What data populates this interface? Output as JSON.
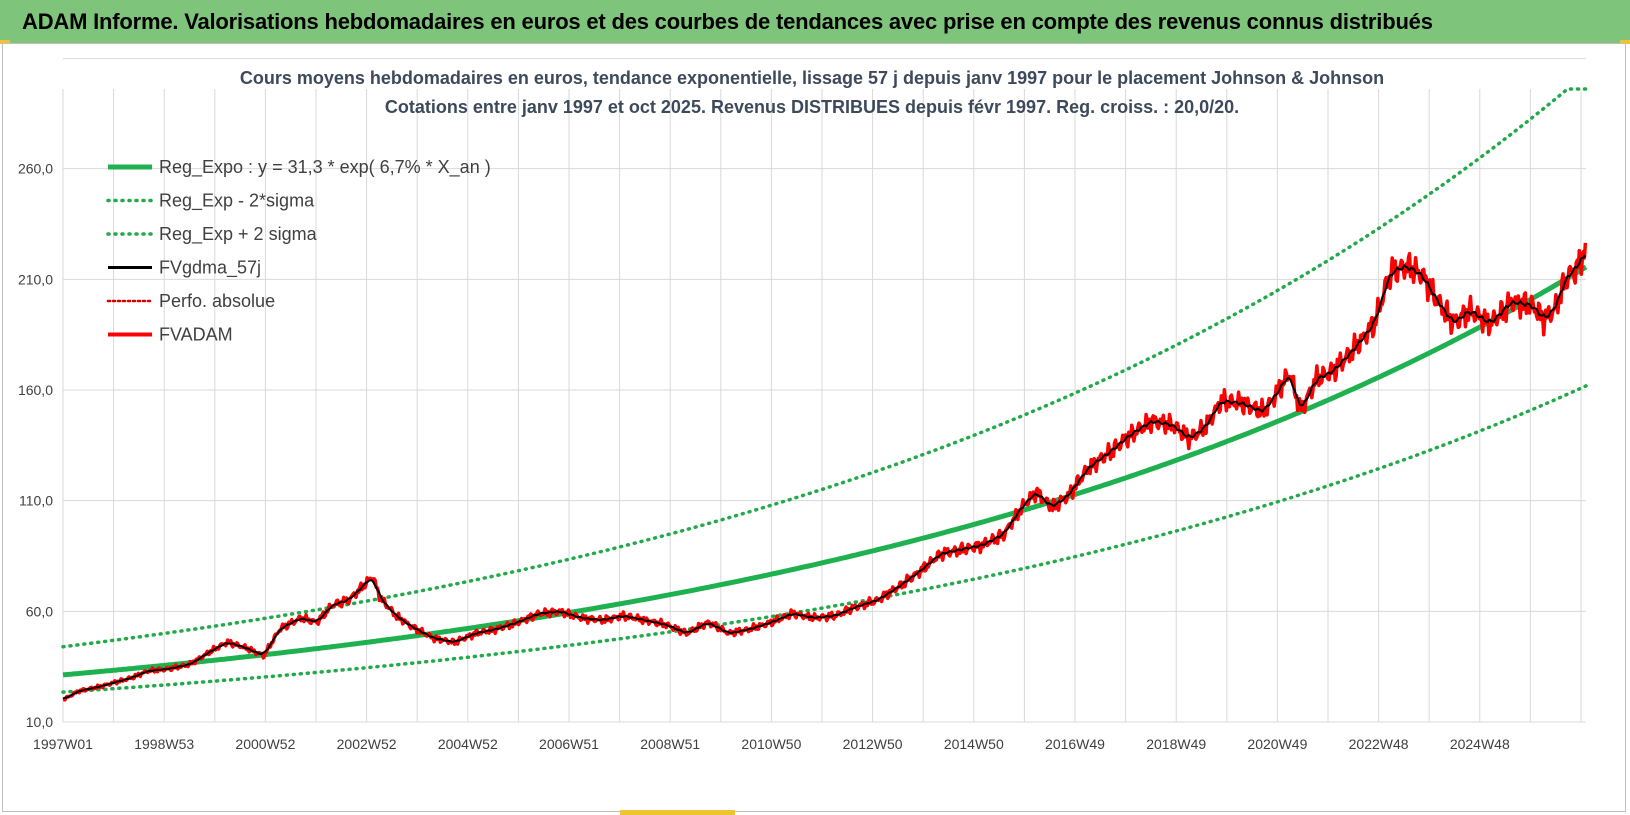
{
  "header": {
    "title": "ADAM Informe. Valorisations hebdomadaires en euros et des courbes de tendances avec prise en compte des revenus connus distribués"
  },
  "colors": {
    "header_bg": "#7ec47a",
    "reg_expo": "#1fb14f",
    "sigma_bands": "#22aa4a",
    "smoothed": "#000000",
    "perf_absolue": "#d40000",
    "fvadam": "#ff0000",
    "grid": "#d9d9d9"
  },
  "chart_data": {
    "type": "line",
    "title": "Cours moyens hebdomadaires en euros, tendance exponentielle, lissage 57 j depuis janv 1997 pour le placement Johnson & Johnson",
    "subtitle": "Cotations entre janv 1997 et oct 2025. Revenus DISTRIBUES depuis févr 1997. Reg. croiss. : 20,0/20.",
    "xlabel": "",
    "ylabel": "",
    "x_ticks": [
      "1997W01",
      "1998W53",
      "2000W52",
      "2002W52",
      "2004W52",
      "2006W51",
      "2008W51",
      "2010W50",
      "2012W50",
      "2014W50",
      "2016W49",
      "2018W49",
      "2020W49",
      "2022W48",
      "2024W48"
    ],
    "x_range": [
      1997.0,
      2025.8
    ],
    "y_ticks": [
      "10,0",
      "60,0",
      "110,0",
      "160,0",
      "210,0",
      "260,0"
    ],
    "ylim": [
      10,
      296
    ],
    "grid": true,
    "legend_position": "top-left",
    "series": [
      {
        "name": "Reg_Expo : y = 31,3 * exp( 6,7% *  X_an )",
        "style": "solid-thick",
        "formula": {
          "a": 31.3,
          "rate": 0.067,
          "x0": 1997.0
        }
      },
      {
        "name": "Reg_Exp - 2*sigma",
        "style": "dotted",
        "formula": {
          "a": 23.5,
          "rate": 0.067,
          "x0": 1997.0
        }
      },
      {
        "name": "Reg_Exp + 2 sigma",
        "style": "dotted",
        "formula": {
          "a": 44.0,
          "rate": 0.067,
          "x0": 1997.0
        },
        "cap": 296
      },
      {
        "name": "FVgdma_57j",
        "style": "solid"
      },
      {
        "name": "Perfo. absolue",
        "style": "dotted",
        "in_legend_only": true
      },
      {
        "name": "FVADAM",
        "style": "solid-thick",
        "points": [
          [
            1997.0,
            20
          ],
          [
            1997.3,
            24
          ],
          [
            1997.7,
            26
          ],
          [
            1998.0,
            28
          ],
          [
            1998.3,
            30
          ],
          [
            1998.6,
            33
          ],
          [
            1999.0,
            34
          ],
          [
            1999.4,
            36
          ],
          [
            1999.8,
            42
          ],
          [
            2000.1,
            46
          ],
          [
            2000.4,
            44
          ],
          [
            2000.8,
            40
          ],
          [
            2001.1,
            52
          ],
          [
            2001.5,
            57
          ],
          [
            2001.8,
            55
          ],
          [
            2002.1,
            63
          ],
          [
            2002.4,
            65
          ],
          [
            2002.7,
            72
          ],
          [
            2002.85,
            76
          ],
          [
            2003.0,
            66
          ],
          [
            2003.3,
            58
          ],
          [
            2003.6,
            53
          ],
          [
            2004.0,
            48
          ],
          [
            2004.4,
            46
          ],
          [
            2004.8,
            50
          ],
          [
            2005.2,
            52
          ],
          [
            2005.6,
            55
          ],
          [
            2006.0,
            59
          ],
          [
            2006.4,
            60
          ],
          [
            2006.8,
            57
          ],
          [
            2007.2,
            56
          ],
          [
            2007.6,
            58
          ],
          [
            2008.0,
            56
          ],
          [
            2008.4,
            54
          ],
          [
            2008.8,
            50
          ],
          [
            2009.2,
            55
          ],
          [
            2009.6,
            50
          ],
          [
            2010.0,
            52
          ],
          [
            2010.4,
            55
          ],
          [
            2010.8,
            59
          ],
          [
            2011.2,
            57
          ],
          [
            2011.6,
            58
          ],
          [
            2012.0,
            62
          ],
          [
            2012.4,
            65
          ],
          [
            2012.8,
            71
          ],
          [
            2013.2,
            78
          ],
          [
            2013.6,
            86
          ],
          [
            2014.0,
            88
          ],
          [
            2014.4,
            90
          ],
          [
            2014.8,
            95
          ],
          [
            2015.1,
            106
          ],
          [
            2015.4,
            114
          ],
          [
            2015.7,
            107
          ],
          [
            2016.0,
            112
          ],
          [
            2016.4,
            125
          ],
          [
            2016.8,
            132
          ],
          [
            2017.2,
            140
          ],
          [
            2017.6,
            146
          ],
          [
            2018.0,
            144
          ],
          [
            2018.3,
            138
          ],
          [
            2018.6,
            143
          ],
          [
            2018.9,
            155
          ],
          [
            2019.3,
            154
          ],
          [
            2019.7,
            150
          ],
          [
            2020.0,
            160
          ],
          [
            2020.2,
            168
          ],
          [
            2020.4,
            150
          ],
          [
            2020.7,
            165
          ],
          [
            2021.0,
            168
          ],
          [
            2021.4,
            178
          ],
          [
            2021.8,
            190
          ],
          [
            2022.1,
            213
          ],
          [
            2022.4,
            216
          ],
          [
            2022.7,
            212
          ],
          [
            2023.0,
            200
          ],
          [
            2023.3,
            190
          ],
          [
            2023.6,
            196
          ],
          [
            2024.0,
            190
          ],
          [
            2024.4,
            200
          ],
          [
            2024.8,
            198
          ],
          [
            2025.0,
            192
          ],
          [
            2025.2,
            196
          ],
          [
            2025.45,
            212
          ],
          [
            2025.6,
            214
          ],
          [
            2025.8,
            224
          ]
        ]
      }
    ]
  }
}
